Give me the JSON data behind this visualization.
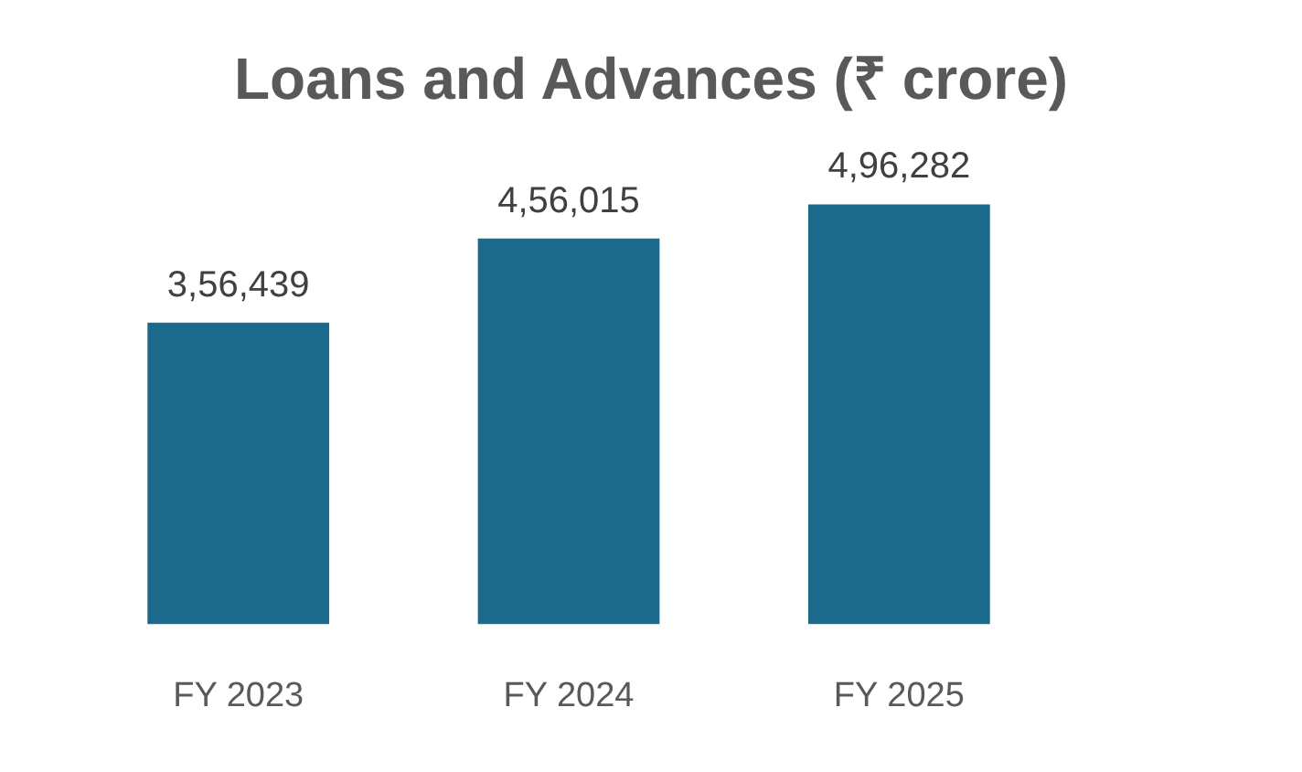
{
  "chart_data": {
    "type": "bar",
    "title": "Loans and Advances (₹ crore)",
    "categories": [
      "FY 2023",
      "FY 2024",
      "FY 2025"
    ],
    "values": [
      356439,
      456015,
      496282
    ],
    "value_labels": [
      "3,56,439",
      "4,56,015",
      "4,96,282"
    ],
    "color": "#1b6a8c",
    "grid": false,
    "legend": false
  }
}
